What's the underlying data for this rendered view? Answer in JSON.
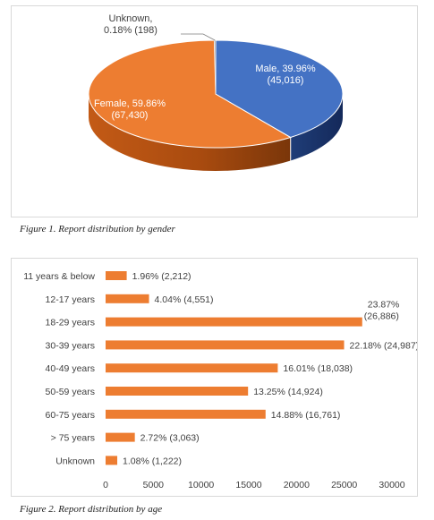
{
  "figures": [
    {
      "caption": "Figure 1. Report distribution by gender"
    },
    {
      "caption": "Figure 2. Report distribution by age"
    }
  ],
  "chart_data": [
    {
      "type": "pie",
      "style": "3d",
      "slices": [
        {
          "name": "Male",
          "percent_label": "39.96%",
          "count_label": "(45,016)",
          "value": 45016,
          "color": "#4472c4"
        },
        {
          "name": "Female",
          "percent_label": "59.86%",
          "count_label": "(67,430)",
          "value": 67430,
          "color": "#ed7d31"
        },
        {
          "name": "Unknown",
          "percent_label": "0.18%",
          "count_label": "(198)",
          "value": 198,
          "color": "#a5a5a5"
        }
      ],
      "labels": {
        "male": "Male, 39.96%",
        "male_count": "(45,016)",
        "female": "Female, 59.86%",
        "female_count": "(67,430)",
        "unknown": "Unknown,",
        "unknown_detail": "0.18% (198)"
      }
    },
    {
      "type": "bar",
      "orientation": "horizontal",
      "categories": [
        "11 years & below",
        "12-17 years",
        "18-29 years",
        "30-39 years",
        "40-49 years",
        "50-59 years",
        "60-75 years",
        "> 75 years",
        "Unknown"
      ],
      "values": [
        2212,
        4551,
        26886,
        24987,
        18038,
        14924,
        16761,
        3063,
        1222
      ],
      "data_labels": [
        "1.96% (2,212)",
        "4.04% (4,551)",
        "23.87% (26,886)",
        "22.18% (24,987)",
        "16.01% (18,038)",
        "13.25% (14,924)",
        "14.88% (16,761)",
        "2.72% (3,063)",
        "1.08% (1,222)"
      ],
      "xlim": [
        0,
        30000
      ],
      "x_ticks": [
        "0",
        "5000",
        "10000",
        "15000",
        "20000",
        "25000",
        "30000"
      ],
      "bar_color": "#ed7d31",
      "grid": false
    }
  ]
}
